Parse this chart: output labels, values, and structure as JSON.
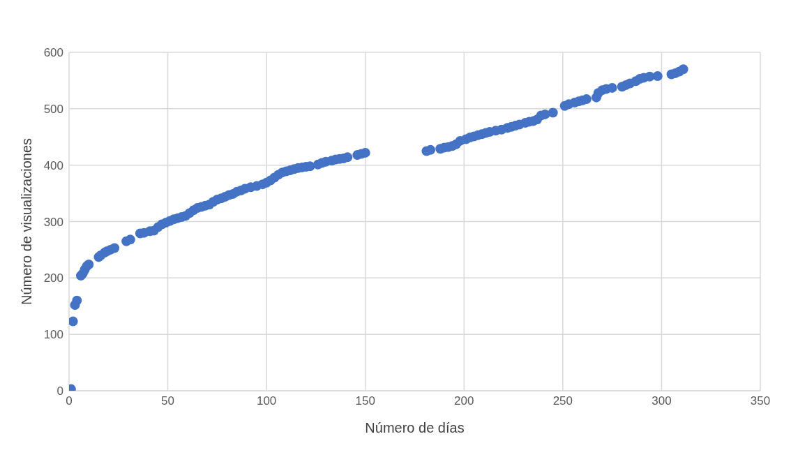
{
  "chart_data": {
    "type": "scatter",
    "xlabel": "Número de días",
    "ylabel": "Número de visualizaciones",
    "x": [
      1,
      2,
      3,
      4,
      6,
      7,
      8,
      9,
      10,
      15,
      16,
      18,
      19,
      21,
      23,
      29,
      31,
      36,
      38,
      41,
      43,
      45,
      47,
      49,
      51,
      53,
      55,
      57,
      59,
      61,
      63,
      65,
      67,
      69,
      71,
      73,
      75,
      77,
      79,
      81,
      83,
      85,
      87,
      89,
      92,
      95,
      98,
      100,
      102,
      104,
      106,
      108,
      110,
      112,
      114,
      116,
      118,
      120,
      122,
      126,
      128,
      130,
      133,
      135,
      137,
      139,
      141,
      146,
      148,
      150,
      181,
      183,
      188,
      190,
      192,
      194,
      196,
      198,
      201,
      203,
      205,
      207,
      209,
      211,
      213,
      216,
      219,
      222,
      224,
      226,
      228,
      231,
      233,
      235,
      237,
      239,
      241,
      245,
      251,
      253,
      256,
      258,
      260,
      262,
      267,
      268,
      270,
      272,
      275,
      280,
      282,
      284,
      287,
      289,
      291,
      294,
      298,
      305,
      307,
      309,
      311
    ],
    "series": [
      {
        "color": "#4472c4",
        "values": [
          3,
          123,
          152,
          160,
          204,
          208,
          215,
          221,
          224,
          237,
          240,
          245,
          247,
          250,
          253,
          265,
          268,
          279,
          280,
          283,
          284,
          290,
          295,
          298,
          301,
          304,
          306,
          308,
          310,
          315,
          320,
          324,
          326,
          328,
          330,
          335,
          339,
          341,
          344,
          347,
          349,
          353,
          355,
          358,
          361,
          363,
          366,
          369,
          373,
          378,
          383,
          387,
          389,
          391,
          393,
          395,
          396,
          397,
          398,
          401,
          404,
          406,
          408,
          410,
          411,
          412,
          414,
          418,
          420,
          422,
          425,
          427,
          429,
          431,
          432,
          434,
          437,
          443,
          446,
          449,
          451,
          453,
          455,
          457,
          459,
          461,
          463,
          466,
          468,
          470,
          472,
          475,
          477,
          478,
          481,
          488,
          490,
          493,
          505,
          508,
          511,
          513,
          515,
          517,
          520,
          528,
          533,
          535,
          537,
          539,
          542,
          545,
          549,
          553,
          555,
          557,
          558,
          561,
          563,
          566,
          570
        ]
      }
    ],
    "xlim": [
      0,
      350
    ],
    "xticks": [
      0,
      50,
      100,
      150,
      200,
      250,
      300,
      350
    ],
    "ylim": [
      0,
      600
    ],
    "yticks": [
      0,
      100,
      200,
      300,
      400,
      500,
      600
    ],
    "grid": true,
    "marker": "circle"
  }
}
